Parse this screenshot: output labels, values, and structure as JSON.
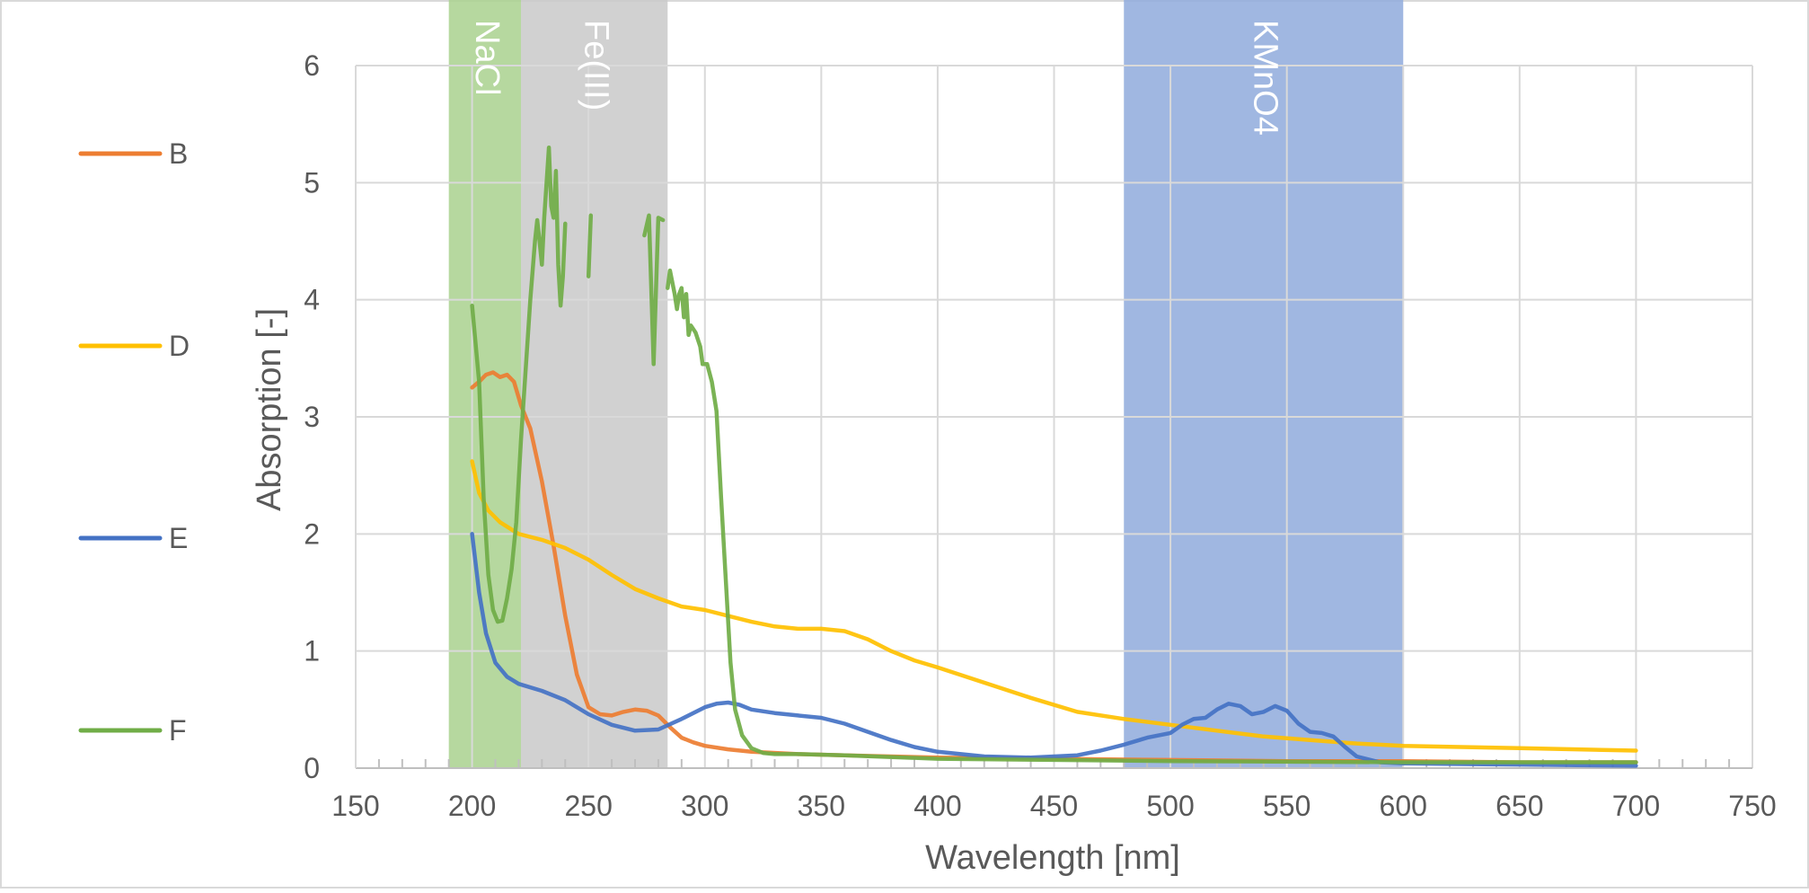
{
  "chart_data": {
    "type": "line",
    "title": "",
    "xlabel": "Wavelength [nm]",
    "ylabel": "Absorption [-]",
    "xlim": [
      150,
      750
    ],
    "ylim": [
      0,
      6
    ],
    "x_ticks": [
      150,
      200,
      250,
      300,
      350,
      400,
      450,
      500,
      550,
      600,
      650,
      700,
      750
    ],
    "y_ticks": [
      0,
      1,
      2,
      3,
      4,
      5,
      6
    ],
    "grid": true,
    "legend_position": "left",
    "bands": [
      {
        "label": "NaCl",
        "x_start": 190,
        "x_end": 221,
        "color": "#a9d18e"
      },
      {
        "label": "Fe(III)",
        "x_start": 221,
        "x_end": 284,
        "color": "#c9c9c9"
      },
      {
        "label": "KMnO4",
        "x_start": 480,
        "x_end": 600,
        "color": "#8faadc"
      }
    ],
    "series": [
      {
        "name": "B",
        "color": "#ed7d31",
        "points": [
          [
            200,
            3.25
          ],
          [
            203,
            3.3
          ],
          [
            206,
            3.36
          ],
          [
            209,
            3.38
          ],
          [
            212,
            3.34
          ],
          [
            215,
            3.36
          ],
          [
            218,
            3.3
          ],
          [
            221,
            3.1
          ],
          [
            225,
            2.9
          ],
          [
            230,
            2.45
          ],
          [
            235,
            1.9
          ],
          [
            240,
            1.3
          ],
          [
            245,
            0.8
          ],
          [
            250,
            0.52
          ],
          [
            255,
            0.46
          ],
          [
            260,
            0.45
          ],
          [
            265,
            0.48
          ],
          [
            270,
            0.5
          ],
          [
            275,
            0.49
          ],
          [
            280,
            0.45
          ],
          [
            285,
            0.35
          ],
          [
            290,
            0.26
          ],
          [
            295,
            0.22
          ],
          [
            300,
            0.19
          ],
          [
            310,
            0.16
          ],
          [
            320,
            0.14
          ],
          [
            340,
            0.12
          ],
          [
            360,
            0.11
          ],
          [
            400,
            0.09
          ],
          [
            450,
            0.08
          ],
          [
            500,
            0.07
          ],
          [
            550,
            0.06
          ],
          [
            600,
            0.06
          ],
          [
            650,
            0.05
          ],
          [
            700,
            0.05
          ]
        ]
      },
      {
        "name": "D",
        "color": "#ffc000",
        "points": [
          [
            200,
            2.62
          ],
          [
            203,
            2.35
          ],
          [
            207,
            2.2
          ],
          [
            212,
            2.1
          ],
          [
            220,
            2.0
          ],
          [
            230,
            1.95
          ],
          [
            240,
            1.88
          ],
          [
            250,
            1.78
          ],
          [
            260,
            1.65
          ],
          [
            270,
            1.53
          ],
          [
            280,
            1.45
          ],
          [
            290,
            1.38
          ],
          [
            300,
            1.35
          ],
          [
            310,
            1.3
          ],
          [
            320,
            1.25
          ],
          [
            330,
            1.21
          ],
          [
            340,
            1.19
          ],
          [
            350,
            1.19
          ],
          [
            360,
            1.17
          ],
          [
            370,
            1.1
          ],
          [
            380,
            1.0
          ],
          [
            390,
            0.92
          ],
          [
            400,
            0.86
          ],
          [
            420,
            0.73
          ],
          [
            440,
            0.6
          ],
          [
            460,
            0.48
          ],
          [
            480,
            0.42
          ],
          [
            500,
            0.37
          ],
          [
            520,
            0.32
          ],
          [
            540,
            0.27
          ],
          [
            560,
            0.24
          ],
          [
            580,
            0.21
          ],
          [
            600,
            0.19
          ],
          [
            650,
            0.17
          ],
          [
            700,
            0.15
          ]
        ]
      },
      {
        "name": "E",
        "color": "#4472c4",
        "points": [
          [
            200,
            2.0
          ],
          [
            203,
            1.5
          ],
          [
            206,
            1.15
          ],
          [
            210,
            0.9
          ],
          [
            215,
            0.78
          ],
          [
            220,
            0.72
          ],
          [
            230,
            0.66
          ],
          [
            240,
            0.58
          ],
          [
            250,
            0.46
          ],
          [
            260,
            0.37
          ],
          [
            270,
            0.32
          ],
          [
            280,
            0.33
          ],
          [
            290,
            0.42
          ],
          [
            300,
            0.52
          ],
          [
            305,
            0.55
          ],
          [
            310,
            0.56
          ],
          [
            315,
            0.54
          ],
          [
            320,
            0.5
          ],
          [
            330,
            0.47
          ],
          [
            340,
            0.45
          ],
          [
            350,
            0.43
          ],
          [
            360,
            0.38
          ],
          [
            370,
            0.31
          ],
          [
            380,
            0.24
          ],
          [
            390,
            0.18
          ],
          [
            400,
            0.14
          ],
          [
            420,
            0.1
          ],
          [
            440,
            0.09
          ],
          [
            460,
            0.11
          ],
          [
            470,
            0.15
          ],
          [
            480,
            0.2
          ],
          [
            490,
            0.26
          ],
          [
            500,
            0.3
          ],
          [
            505,
            0.37
          ],
          [
            510,
            0.42
          ],
          [
            515,
            0.43
          ],
          [
            520,
            0.5
          ],
          [
            525,
            0.55
          ],
          [
            530,
            0.53
          ],
          [
            535,
            0.46
          ],
          [
            540,
            0.48
          ],
          [
            545,
            0.53
          ],
          [
            550,
            0.49
          ],
          [
            555,
            0.38
          ],
          [
            560,
            0.31
          ],
          [
            565,
            0.3
          ],
          [
            570,
            0.27
          ],
          [
            575,
            0.18
          ],
          [
            580,
            0.1
          ],
          [
            590,
            0.05
          ],
          [
            600,
            0.04
          ],
          [
            650,
            0.03
          ],
          [
            700,
            0.02
          ]
        ]
      },
      {
        "name": "F",
        "color": "#70ad47",
        "segments": [
          [
            [
              200,
              3.95
            ],
            [
              203,
              3.3
            ],
            [
              205,
              2.3
            ],
            [
              207,
              1.65
            ],
            [
              209,
              1.35
            ],
            [
              211,
              1.25
            ],
            [
              213,
              1.26
            ],
            [
              215,
              1.45
            ],
            [
              217,
              1.7
            ],
            [
              219,
              2.1
            ],
            [
              221,
              2.8
            ],
            [
              223,
              3.4
            ],
            [
              225,
              4.0
            ],
            [
              227,
              4.5
            ],
            [
              228,
              4.68
            ],
            [
              229,
              4.5
            ],
            [
              230,
              4.3
            ],
            [
              231,
              4.7
            ],
            [
              232,
              5.0
            ],
            [
              233,
              5.3
            ],
            [
              234,
              4.8
            ],
            [
              235,
              4.7
            ],
            [
              236,
              5.1
            ],
            [
              237,
              4.3
            ],
            [
              238,
              3.95
            ],
            [
              239,
              4.2
            ],
            [
              240,
              4.65
            ]
          ],
          [
            [
              250,
              4.2
            ],
            [
              251,
              4.72
            ]
          ],
          [
            [
              274,
              4.55
            ],
            [
              276,
              4.72
            ],
            [
              278,
              3.45
            ],
            [
              280,
              4.7
            ],
            [
              282,
              4.68
            ]
          ],
          [
            [
              284,
              4.1
            ],
            [
              285,
              4.25
            ],
            [
              287,
              4.05
            ],
            [
              288,
              3.92
            ],
            [
              289,
              4.05
            ],
            [
              290,
              4.1
            ],
            [
              291,
              3.85
            ],
            [
              292,
              4.05
            ],
            [
              293,
              3.7
            ],
            [
              294,
              3.78
            ],
            [
              296,
              3.72
            ],
            [
              298,
              3.6
            ],
            [
              299,
              3.45
            ],
            [
              301,
              3.45
            ],
            [
              303,
              3.3
            ],
            [
              305,
              3.05
            ],
            [
              307,
              2.3
            ],
            [
              309,
              1.6
            ],
            [
              311,
              0.9
            ],
            [
              313,
              0.5
            ],
            [
              316,
              0.28
            ],
            [
              320,
              0.17
            ],
            [
              325,
              0.13
            ],
            [
              330,
              0.12
            ],
            [
              340,
              0.12
            ],
            [
              360,
              0.11
            ],
            [
              400,
              0.08
            ],
            [
              450,
              0.07
            ],
            [
              500,
              0.06
            ],
            [
              600,
              0.05
            ],
            [
              700,
              0.05
            ]
          ]
        ]
      }
    ]
  }
}
